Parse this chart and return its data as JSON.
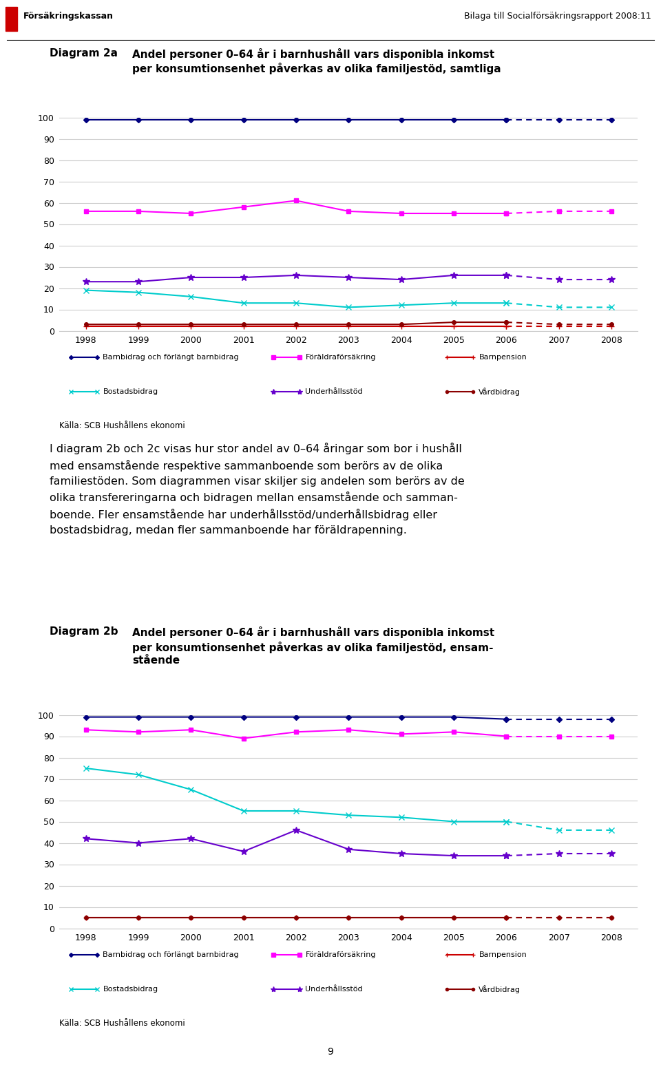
{
  "years": [
    1998,
    1999,
    2000,
    2001,
    2002,
    2003,
    2004,
    2005,
    2006,
    2007,
    2008
  ],
  "split_idx": 8,
  "chart1_title_bold": "Diagram 2a",
  "chart1_title_text": "Andel personer 0–64 år i barnhushåll vars disponibla inkomst\nper konsumtionsenhet påverkas av olika familjestöd, samtliga",
  "chart2_title_bold": "Diagram 2b",
  "chart2_title_text": "Andel personer 0–64 år i barnhushåll vars disponibla inkomst\nper konsumtionsenhet påverkas av olika familjestöd, ensam-\nstående",
  "chart1": {
    "barnbidrag": [
      99,
      99,
      99,
      99,
      99,
      99,
      99,
      99,
      99,
      99,
      99
    ],
    "foraldraforsakring": [
      56,
      56,
      55,
      58,
      61,
      56,
      55,
      55,
      55,
      56,
      56
    ],
    "barnpension": [
      2,
      2,
      2,
      2,
      2,
      2,
      2,
      2,
      2,
      2,
      2
    ],
    "bostadsbidrag": [
      19,
      18,
      16,
      13,
      13,
      11,
      12,
      13,
      13,
      11,
      11
    ],
    "underhallsstod": [
      23,
      23,
      25,
      25,
      26,
      25,
      24,
      26,
      26,
      24,
      24
    ],
    "vardbidrag": [
      3,
      3,
      3,
      3,
      3,
      3,
      3,
      4,
      4,
      3,
      3
    ]
  },
  "chart2": {
    "barnbidrag": [
      99,
      99,
      99,
      99,
      99,
      99,
      99,
      99,
      98,
      98,
      98
    ],
    "foraldraforsakring": [
      93,
      92,
      93,
      89,
      92,
      93,
      91,
      92,
      90,
      90,
      90
    ],
    "barnpension": [
      5,
      5,
      5,
      5,
      5,
      5,
      5,
      5,
      5,
      5,
      5
    ],
    "bostadsbidrag": [
      75,
      72,
      65,
      55,
      55,
      53,
      52,
      50,
      50,
      46,
      46
    ],
    "underhallsstod": [
      42,
      40,
      42,
      36,
      46,
      37,
      35,
      34,
      34,
      35,
      35
    ],
    "vardbidrag": [
      5,
      5,
      5,
      5,
      5,
      5,
      5,
      5,
      5,
      5,
      5
    ]
  },
  "colors": {
    "barnbidrag": "#000080",
    "foraldraforsakring": "#FF00FF",
    "barnpension": "#CC0000",
    "bostadsbidrag": "#00CCCC",
    "underhallsstod": "#6600CC",
    "vardbidrag": "#8B0000"
  },
  "legend_labels": {
    "barnbidrag": "Barnbidrag och förlängt barnbidrag",
    "foraldraforsakring": "Föräldraförsäkring",
    "barnpension": "Barnpension",
    "bostadsbidrag": "Bostadsbidrag",
    "underhallsstod": "Underhållsstöd",
    "vardbidrag": "Vårdbidrag"
  },
  "source_text": "Källa: SCB Hushållens ekonomi",
  "body_text": "I diagram 2b och 2c visas hur stor andel av 0–64 åringar som bor i hushåll\nmed ensamstående respektive sammanboende som berörs av de olika\nfamiliestöden. Som diagrammen visar skiljer sig andelen som berörs av de\nolika transfereringarna och bidragen mellan ensamstående och samman-\nboende. Fler ensamstående har underhållsstöd/underhållsbidrag eller\nbostadsbidrag, medan fler sammanboende har föräldrapenning.",
  "header_left": "Försäkringskassan",
  "header_right": "Bilaga till Socialförsäkringsrapport 2008:11",
  "page_number": "9"
}
